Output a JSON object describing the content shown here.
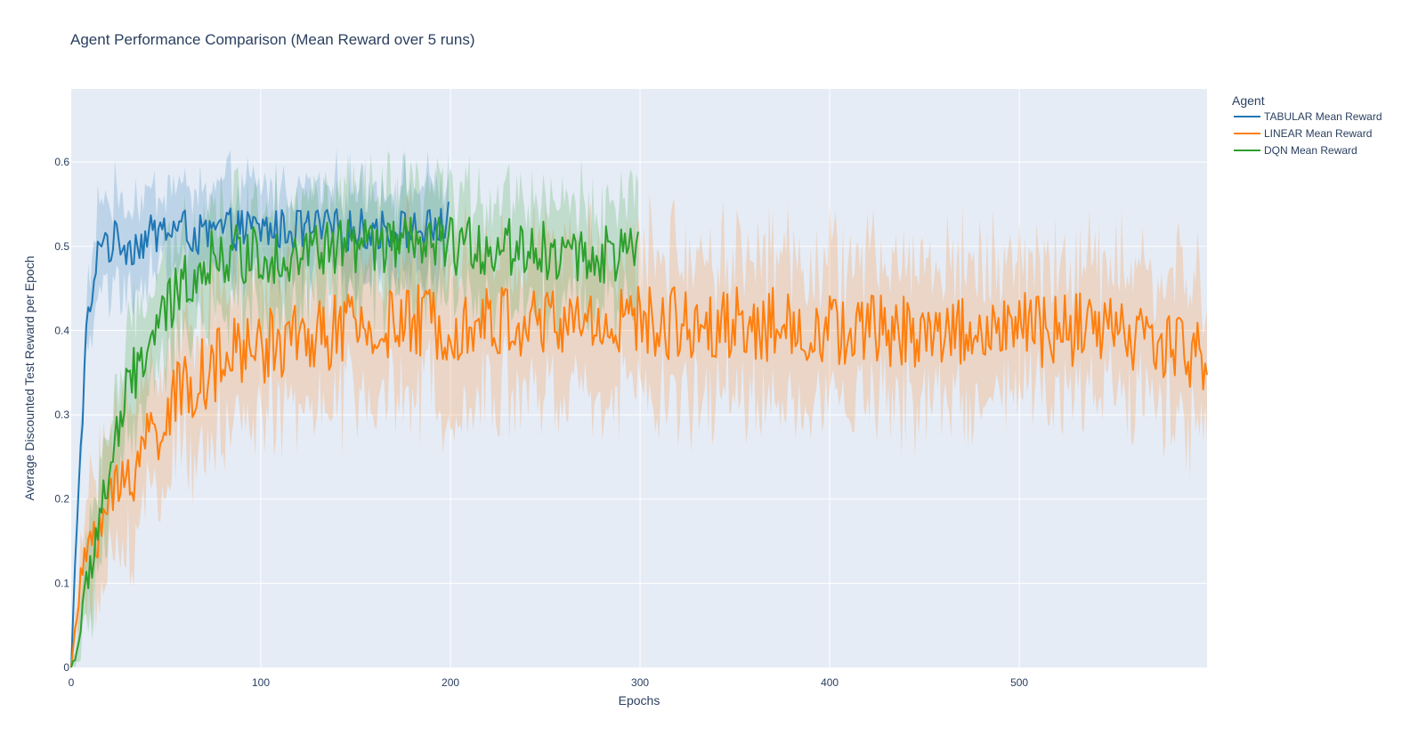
{
  "chart_data": {
    "type": "line",
    "title": "Agent Performance Comparison (Mean Reward over 5 runs)",
    "xlabel": "Epochs",
    "ylabel": "Average Discounted Test Reward per Epoch",
    "xlim": [
      0,
      599
    ],
    "ylim": [
      0,
      0.6868
    ],
    "x_ticks": [
      0,
      100,
      200,
      300,
      400,
      500
    ],
    "y_ticks": [
      0,
      0.1,
      0.2,
      0.3,
      0.4,
      0.5,
      0.6
    ],
    "y_tick_labels": [
      "0",
      "0.1",
      "0.2",
      "0.3",
      "0.4",
      "0.5",
      "0.6"
    ],
    "grid": true,
    "shaded_band": "min-max range across runs",
    "legend": {
      "title": "Agent",
      "placement": "right"
    },
    "colors": {
      "plot_bg": "#E5ECF6",
      "grid": "#FFFFFF",
      "text": "#2a3f5f"
    },
    "series": [
      {
        "name": "TABULAR Mean Reward",
        "color": "#1f77b4",
        "epochs": 200,
        "x": [
          0,
          2,
          4,
          6,
          8,
          10,
          12,
          14,
          16,
          20,
          25,
          30,
          40,
          50,
          60,
          70,
          80,
          90,
          100,
          110,
          120,
          130,
          140,
          150,
          160,
          170,
          180,
          190,
          200
        ],
        "y": [
          0.0,
          0.12,
          0.22,
          0.3,
          0.4,
          0.43,
          0.44,
          0.49,
          0.52,
          0.5,
          0.51,
          0.5,
          0.51,
          0.52,
          0.52,
          0.51,
          0.52,
          0.52,
          0.52,
          0.52,
          0.52,
          0.52,
          0.52,
          0.52,
          0.52,
          0.52,
          0.52,
          0.52,
          0.53
        ],
        "band_halfwidth": 0.05
      },
      {
        "name": "LINEAR Mean Reward",
        "color": "#ff7f0e",
        "epochs": 600,
        "x": [
          0,
          5,
          10,
          20,
          30,
          40,
          50,
          60,
          70,
          80,
          90,
          100,
          120,
          140,
          160,
          180,
          200,
          250,
          300,
          350,
          400,
          450,
          500,
          550,
          599
        ],
        "y": [
          0.0,
          0.1,
          0.16,
          0.19,
          0.23,
          0.27,
          0.3,
          0.33,
          0.35,
          0.36,
          0.38,
          0.38,
          0.39,
          0.4,
          0.4,
          0.41,
          0.41,
          0.41,
          0.41,
          0.41,
          0.4,
          0.4,
          0.4,
          0.4,
          0.37
        ],
        "band_halfwidth": 0.08
      },
      {
        "name": "DQN Mean Reward",
        "color": "#2ca02c",
        "epochs": 300,
        "x": [
          0,
          3,
          5,
          10,
          15,
          20,
          25,
          30,
          40,
          50,
          60,
          70,
          80,
          90,
          100,
          120,
          140,
          160,
          180,
          200,
          220,
          240,
          260,
          280,
          298
        ],
        "y": [
          0.0,
          0.02,
          0.05,
          0.12,
          0.18,
          0.23,
          0.28,
          0.33,
          0.38,
          0.42,
          0.46,
          0.48,
          0.49,
          0.49,
          0.49,
          0.49,
          0.5,
          0.5,
          0.5,
          0.5,
          0.5,
          0.5,
          0.49,
          0.49,
          0.49
        ],
        "band_halfwidth": 0.06
      }
    ]
  }
}
